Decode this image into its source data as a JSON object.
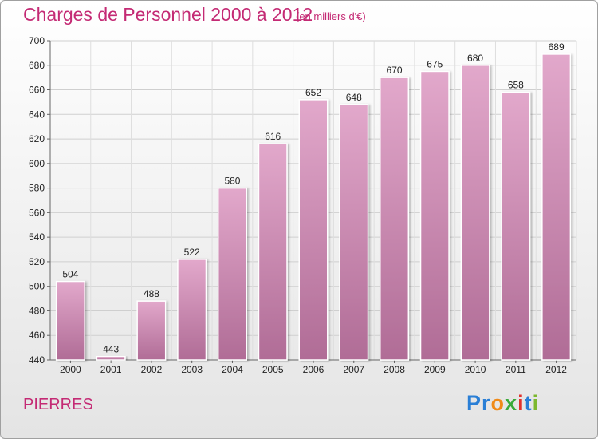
{
  "header": {
    "title": "Charges de Personnel 2000 à 2012",
    "subtitle": "(en milliers d'€)"
  },
  "footer": {
    "place": "PIERRES",
    "logo_letters": [
      "P",
      "r",
      "o",
      "x",
      "i",
      "t",
      "i"
    ]
  },
  "colors": {
    "title": "#c42a74",
    "bar_top": "#e2a8cb",
    "bar_bottom": "#b06c96",
    "logo": [
      "#2a7fd6",
      "#2a7fd6",
      "#f08a18",
      "#3aaa3a",
      "#e2312c",
      "#2a7fd6",
      "#7cb82f"
    ]
  },
  "chart_data": {
    "type": "bar",
    "title": "Charges de Personnel 2000 à 2012",
    "subtitle": "(en milliers d'€)",
    "categories": [
      "2000",
      "2001",
      "2002",
      "2003",
      "2004",
      "2005",
      "2006",
      "2007",
      "2008",
      "2009",
      "2010",
      "2011",
      "2012"
    ],
    "values": [
      504,
      443,
      488,
      522,
      580,
      616,
      652,
      648,
      670,
      675,
      680,
      658,
      689
    ],
    "ylim": [
      440,
      700
    ],
    "yticks": [
      440,
      460,
      480,
      500,
      520,
      540,
      560,
      580,
      600,
      620,
      640,
      660,
      680,
      700
    ],
    "grid": true,
    "legend": "none"
  }
}
